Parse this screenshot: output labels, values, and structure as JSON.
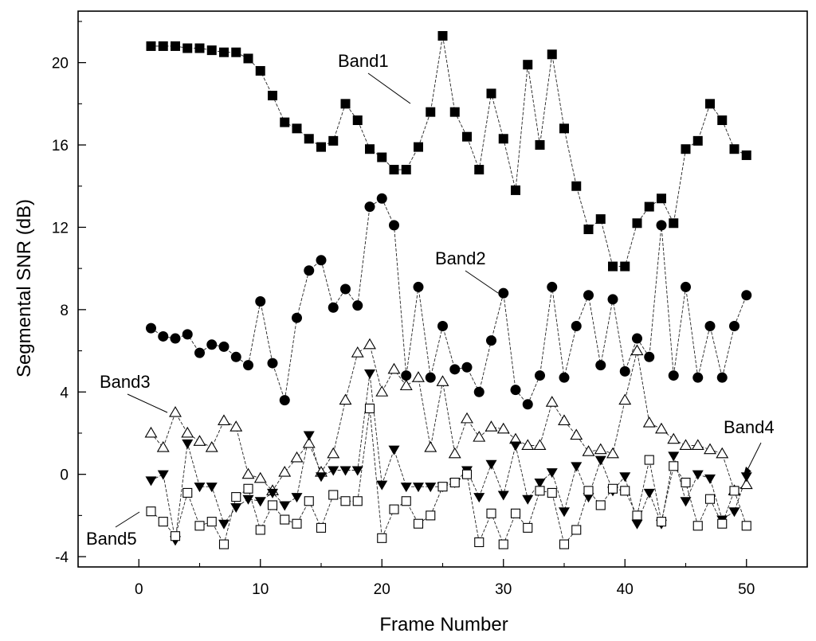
{
  "chart_data": {
    "type": "line",
    "xlabel": "Frame Number",
    "ylabel": "Segmental SNR (dB)",
    "xlim": [
      -5,
      55
    ],
    "ylim": [
      -4.5,
      22.5
    ],
    "xticks": [
      0,
      10,
      20,
      30,
      40,
      50
    ],
    "yticks": [
      -4,
      0,
      4,
      8,
      12,
      16,
      20
    ],
    "grid": false,
    "x": [
      1,
      2,
      3,
      4,
      5,
      6,
      7,
      8,
      9,
      10,
      11,
      12,
      13,
      14,
      15,
      16,
      17,
      18,
      19,
      20,
      21,
      22,
      23,
      24,
      25,
      26,
      27,
      28,
      29,
      30,
      31,
      32,
      33,
      34,
      35,
      36,
      37,
      38,
      39,
      40,
      41,
      42,
      43,
      44,
      45,
      46,
      47,
      48,
      49,
      50
    ],
    "series": [
      {
        "name": "Band1",
        "marker": "square-filled",
        "values": [
          20.8,
          20.8,
          20.8,
          20.7,
          20.7,
          20.6,
          20.5,
          20.5,
          20.2,
          19.6,
          18.4,
          17.1,
          16.8,
          16.3,
          15.9,
          16.2,
          18.0,
          17.2,
          15.8,
          15.4,
          14.8,
          14.8,
          15.9,
          17.6,
          21.3,
          17.6,
          16.4,
          14.8,
          18.5,
          16.3,
          13.8,
          19.9,
          16.0,
          20.4,
          16.8,
          14.0,
          11.9,
          12.4,
          10.1,
          10.1,
          12.2,
          13.0,
          13.4,
          12.2,
          15.8,
          16.2,
          18.0,
          17.2,
          15.8,
          15.5
        ]
      },
      {
        "name": "Band2",
        "marker": "circle-filled",
        "values": [
          7.1,
          6.7,
          6.6,
          6.8,
          5.9,
          6.3,
          6.2,
          5.7,
          5.3,
          8.4,
          5.4,
          3.6,
          7.6,
          9.9,
          10.4,
          8.1,
          9.0,
          8.2,
          13.0,
          13.4,
          12.1,
          4.8,
          9.1,
          4.7,
          7.2,
          5.1,
          5.2,
          4.0,
          6.5,
          8.8,
          4.1,
          3.4,
          4.8,
          9.1,
          4.7,
          7.2,
          8.7,
          5.3,
          8.5,
          5.0,
          6.6,
          5.7,
          12.1,
          4.8,
          9.1,
          4.7,
          7.2,
          4.7,
          7.2,
          8.7
        ]
      },
      {
        "name": "Band3",
        "marker": "triangle-up-open",
        "values": [
          2.0,
          1.3,
          3.0,
          2.0,
          1.6,
          1.3,
          2.6,
          2.3,
          0.0,
          -0.2,
          -0.8,
          0.1,
          0.8,
          1.5,
          0.1,
          1.0,
          3.6,
          5.9,
          6.3,
          4.0,
          5.1,
          4.3,
          4.7,
          1.3,
          4.5,
          1.0,
          2.7,
          1.8,
          2.3,
          2.2,
          1.7,
          1.4,
          1.4,
          3.5,
          2.6,
          1.9,
          1.1,
          1.2,
          1.0,
          3.6,
          6.0,
          2.5,
          2.2,
          1.7,
          1.4,
          1.4,
          1.2,
          1.0,
          -0.8,
          -0.5
        ]
      },
      {
        "name": "Band4",
        "marker": "triangle-down-filled",
        "values": [
          -0.3,
          0.0,
          -3.2,
          1.5,
          -0.6,
          -0.6,
          -2.4,
          -1.6,
          -1.2,
          -1.3,
          -0.9,
          -1.5,
          -1.1,
          1.9,
          -0.1,
          0.2,
          0.2,
          0.2,
          4.9,
          -0.5,
          1.2,
          -0.6,
          -0.6,
          -0.6,
          -0.6,
          -0.4,
          0.2,
          -1.1,
          0.5,
          -1.0,
          1.4,
          -1.2,
          -0.4,
          0.1,
          -1.8,
          0.4,
          -1.1,
          0.7,
          -0.8,
          -0.1,
          -2.4,
          -0.9,
          -2.4,
          0.9,
          -1.3,
          0.0,
          -0.2,
          -2.2,
          -1.8,
          -0.1
        ]
      },
      {
        "name": "Band5",
        "marker": "square-open",
        "values": [
          -1.8,
          -2.3,
          -3.0,
          -0.9,
          -2.5,
          -2.3,
          -3.4,
          -1.1,
          -0.7,
          -2.7,
          -1.5,
          -2.2,
          -2.4,
          -1.3,
          -2.6,
          -1.0,
          -1.3,
          -1.3,
          3.2,
          -3.1,
          -1.7,
          -1.3,
          -2.4,
          -2.0,
          -0.6,
          -0.4,
          0.0,
          -3.3,
          -1.9,
          -3.4,
          -1.9,
          -2.6,
          -0.8,
          -0.9,
          -3.4,
          -2.7,
          -0.8,
          -1.5,
          -0.7,
          -0.8,
          -2.0,
          0.7,
          -2.3,
          0.4,
          -0.4,
          -2.5,
          -1.2,
          -2.4,
          -0.8,
          -2.5
        ]
      }
    ],
    "annotations": [
      {
        "text": "Band1",
        "points_to": [
          23,
          17.4
        ]
      },
      {
        "text": "Band2",
        "points_to": [
          30,
          8.9
        ]
      },
      {
        "text": "Band3",
        "points_to": [
          3,
          3.0
        ]
      },
      {
        "text": "Band4",
        "points_to": [
          50,
          -0.3
        ]
      },
      {
        "text": "Band5",
        "points_to": [
          1,
          -1.8
        ]
      }
    ]
  }
}
